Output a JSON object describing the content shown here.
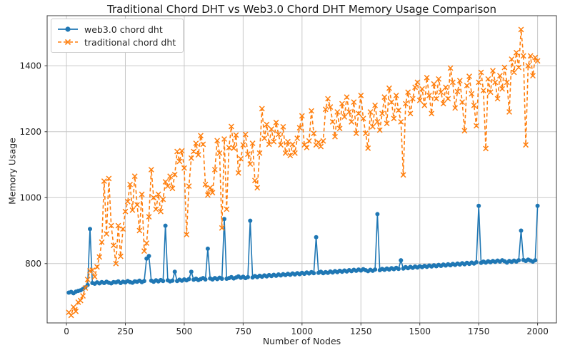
{
  "title": "Traditional Chord DHT vs Web3.0 Chord DHT Memory Usage Comparison",
  "colors": {
    "background": "#ffffff",
    "grid": "#c8c8c8",
    "spine": "#3c3c3c",
    "tick_text": "#262626",
    "series_blue": "#1f77b4",
    "series_orange": "#ff7f0e"
  },
  "chart_data": {
    "type": "line",
    "title": "Traditional Chord DHT vs Web3.0 Chord DHT Memory Usage Comparison",
    "xlabel": "Number of Nodes",
    "ylabel": "Memory Usage",
    "xlim": [
      -82,
      2080
    ],
    "ylim": [
      620,
      1552
    ],
    "x_ticks": [
      0,
      250,
      500,
      750,
      1000,
      1250,
      1500,
      1750,
      2000
    ],
    "y_ticks": [
      800,
      1000,
      1200,
      1400
    ],
    "grid": true,
    "legend_position": "upper-left",
    "x": [
      10,
      20,
      30,
      40,
      50,
      60,
      70,
      80,
      90,
      100,
      110,
      120,
      130,
      140,
      150,
      160,
      170,
      180,
      190,
      200,
      210,
      220,
      230,
      240,
      250,
      260,
      270,
      280,
      290,
      300,
      310,
      320,
      330,
      340,
      350,
      360,
      370,
      380,
      390,
      400,
      410,
      420,
      430,
      440,
      450,
      460,
      470,
      480,
      490,
      500,
      510,
      520,
      530,
      540,
      550,
      560,
      570,
      580,
      590,
      600,
      610,
      620,
      630,
      640,
      650,
      660,
      670,
      680,
      690,
      700,
      710,
      720,
      730,
      740,
      750,
      760,
      770,
      780,
      790,
      800,
      810,
      820,
      830,
      840,
      850,
      860,
      870,
      880,
      890,
      900,
      910,
      920,
      930,
      940,
      950,
      960,
      970,
      980,
      990,
      1000,
      1010,
      1020,
      1030,
      1040,
      1050,
      1060,
      1070,
      1080,
      1090,
      1100,
      1110,
      1120,
      1130,
      1140,
      1150,
      1160,
      1170,
      1180,
      1190,
      1200,
      1210,
      1220,
      1230,
      1240,
      1250,
      1260,
      1270,
      1280,
      1290,
      1300,
      1310,
      1320,
      1330,
      1340,
      1350,
      1360,
      1370,
      1380,
      1390,
      1400,
      1410,
      1420,
      1430,
      1440,
      1450,
      1460,
      1470,
      1480,
      1490,
      1500,
      1510,
      1520,
      1530,
      1540,
      1550,
      1560,
      1570,
      1580,
      1590,
      1600,
      1610,
      1620,
      1630,
      1640,
      1650,
      1660,
      1670,
      1680,
      1690,
      1700,
      1710,
      1720,
      1730,
      1740,
      1750,
      1760,
      1770,
      1780,
      1790,
      1800,
      1810,
      1820,
      1830,
      1840,
      1850,
      1860,
      1870,
      1880,
      1890,
      1900,
      1910,
      1920,
      1930,
      1940,
      1950,
      1960,
      1970,
      1980,
      1990,
      2000
    ],
    "series": [
      {
        "name": "web3.0 chord dht",
        "color": "#1f77b4",
        "line_style": "solid",
        "marker": "circle",
        "values": [
          712,
          714,
          710,
          715,
          717,
          719,
          723,
          728,
          735,
          905,
          741,
          739,
          743,
          740,
          744,
          741,
          745,
          742,
          740,
          744,
          743,
          746,
          741,
          745,
          743,
          747,
          744,
          742,
          746,
          745,
          748,
          744,
          747,
          815,
          823,
          748,
          745,
          749,
          746,
          750,
          747,
          915,
          749,
          746,
          748,
          775,
          747,
          751,
          748,
          752,
          749,
          753,
          775,
          751,
          754,
          750,
          753,
          756,
          752,
          845,
          755,
          752,
          756,
          753,
          757,
          754,
          935,
          754,
          756,
          759,
          755,
          758,
          761,
          757,
          760,
          756,
          759,
          930,
          758,
          762,
          759,
          763,
          760,
          764,
          761,
          765,
          762,
          766,
          763,
          767,
          764,
          768,
          765,
          769,
          766,
          770,
          767,
          771,
          768,
          772,
          769,
          773,
          770,
          774,
          771,
          880,
          772,
          775,
          771,
          774,
          772,
          776,
          773,
          777,
          774,
          778,
          775,
          779,
          776,
          780,
          777,
          781,
          778,
          782,
          779,
          783,
          780,
          777,
          781,
          778,
          782,
          950,
          780,
          784,
          781,
          785,
          782,
          786,
          783,
          787,
          784,
          810,
          785,
          789,
          786,
          790,
          787,
          791,
          788,
          792,
          789,
          793,
          790,
          794,
          791,
          795,
          792,
          796,
          793,
          797,
          794,
          798,
          795,
          799,
          796,
          800,
          797,
          801,
          798,
          802,
          799,
          803,
          800,
          804,
          975,
          802,
          806,
          803,
          807,
          804,
          808,
          805,
          809,
          806,
          810,
          807,
          803,
          808,
          805,
          809,
          806,
          810,
          900,
          811,
          808,
          812,
          809,
          806,
          810,
          975
        ]
      },
      {
        "name": "traditional chord dht",
        "color": "#ff7f0e",
        "line_style": "dashed",
        "marker": "x",
        "values": [
          652,
          643,
          668,
          655,
          683,
          688,
          702,
          726,
          752,
          778,
          780,
          760,
          790,
          820,
          865,
          1050,
          890,
          1058,
          915,
          855,
          800,
          915,
          822,
          905,
          958,
          988,
          1040,
          962,
          1065,
          978,
          900,
          1010,
          838,
          862,
          942,
          1085,
          1000,
          965,
          1010,
          958,
          995,
          1048,
          1035,
          1065,
          1028,
          1070,
          1140,
          1110,
          1142,
          1090,
          888,
          1035,
          1120,
          1140,
          1165,
          1130,
          1188,
          1162,
          1040,
          1008,
          1030,
          1015,
          1085,
          1173,
          1135,
          908,
          1178,
          965,
          1152,
          1216,
          1150,
          1190,
          1075,
          1118,
          1160,
          1192,
          1132,
          1102,
          1165,
          1052,
          1030,
          1135,
          1270,
          1180,
          1222,
          1162,
          1208,
          1170,
          1228,
          1192,
          1160,
          1215,
          1135,
          1170,
          1128,
          1162,
          1135,
          1180,
          1212,
          1248,
          1160,
          1152,
          1172,
          1263,
          1195,
          1160,
          1168,
          1155,
          1172,
          1268,
          1300,
          1275,
          1230,
          1185,
          1260,
          1210,
          1285,
          1245,
          1305,
          1260,
          1230,
          1290,
          1195,
          1255,
          1310,
          1240,
          1195,
          1150,
          1260,
          1215,
          1280,
          1230,
          1205,
          1255,
          1305,
          1225,
          1332,
          1290,
          1240,
          1310,
          1265,
          1230,
          1069,
          1285,
          1320,
          1255,
          1300,
          1335,
          1350,
          1295,
          1330,
          1280,
          1364,
          1310,
          1255,
          1345,
          1300,
          1360,
          1320,
          1285,
          1335,
          1300,
          1393,
          1350,
          1272,
          1322,
          1355,
          1290,
          1203,
          1340,
          1368,
          1315,
          1280,
          1218,
          1350,
          1380,
          1325,
          1149,
          1360,
          1320,
          1385,
          1350,
          1300,
          1370,
          1330,
          1395,
          1350,
          1260,
          1420,
          1380,
          1440,
          1395,
          1510,
          1430,
          1160,
          1400,
          1430,
          1370,
          1425,
          1415
        ]
      }
    ]
  }
}
